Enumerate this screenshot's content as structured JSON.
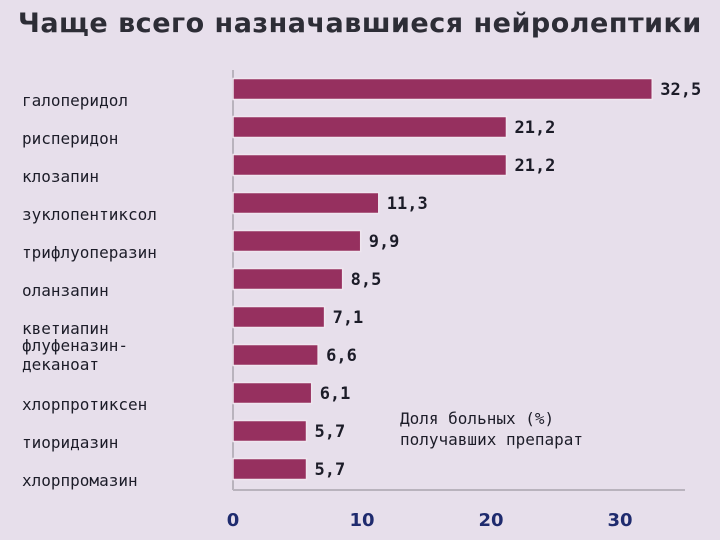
{
  "title": "Чаще всего назначавшиеся нейролептики",
  "chart_data": {
    "type": "bar",
    "orientation": "horizontal",
    "categories": [
      [
        "галоперидол"
      ],
      [
        "рисперидон"
      ],
      [
        "клозапин"
      ],
      [
        "зуклопентиксол"
      ],
      [
        "трифлуоперазин"
      ],
      [
        "оланзапин"
      ],
      [
        "кветиапин"
      ],
      [
        "флуфеназин-",
        "деканоат"
      ],
      [
        "хлорпротиксен"
      ],
      [
        "тиоридазин"
      ],
      [
        "хлорпромазин"
      ]
    ],
    "values": [
      32.5,
      21.2,
      21.2,
      11.3,
      9.9,
      8.5,
      7.1,
      6.6,
      6.1,
      5.7,
      5.7
    ],
    "value_labels": [
      "32,5",
      "21,2",
      "21,2",
      "11,3",
      "9,9",
      "8,5",
      "7,1",
      "6,6",
      "6,1",
      "5,7",
      "5,7"
    ],
    "xlim": [
      0,
      35
    ],
    "xticks": [
      0,
      10,
      20,
      30
    ],
    "annotation": [
      "Доля больных (%)",
      "получавших препарат"
    ],
    "bar_color": "#96305f",
    "grid": false
  }
}
